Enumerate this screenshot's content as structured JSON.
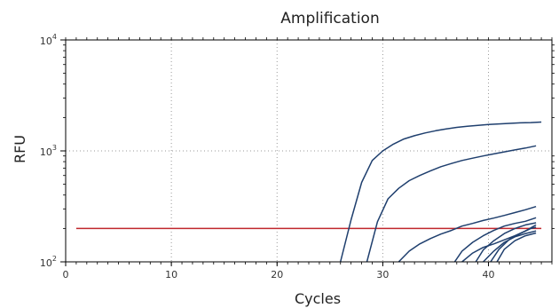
{
  "chart_data": {
    "type": "line",
    "title": "Amplification",
    "xlabel": "Cycles",
    "ylabel": "RFU",
    "xlim": [
      0,
      46
    ],
    "ylim": [
      100,
      10000
    ],
    "yscale": "log",
    "x_ticks": [
      "0",
      "10",
      "20",
      "30",
      "40"
    ],
    "x_tick_values": [
      0,
      10,
      20,
      30,
      40
    ],
    "y_ticks": [
      {
        "value": 100,
        "base": "10",
        "exp": "2"
      },
      {
        "value": 1000,
        "base": "10",
        "exp": "3"
      },
      {
        "value": 10000,
        "base": "10",
        "exp": "4"
      }
    ],
    "grid": true,
    "colors": {
      "series": "#1f3f6e",
      "threshold": "#c0272d",
      "grid": "#999999",
      "axis": "#000000"
    },
    "threshold": 200,
    "series": [
      {
        "x": [
          26,
          27,
          28,
          29,
          30,
          31,
          32,
          33,
          34,
          35,
          36,
          37,
          38,
          39,
          40,
          41,
          42,
          43,
          44,
          45
        ],
        "y": [
          100,
          240,
          520,
          820,
          1000,
          1150,
          1280,
          1370,
          1450,
          1520,
          1580,
          1630,
          1670,
          1700,
          1730,
          1750,
          1770,
          1790,
          1800,
          1820
        ]
      },
      {
        "x": [
          28.5,
          29.5,
          30.5,
          31.5,
          32.5,
          33.5,
          34.5,
          35.5,
          36.5,
          37.5,
          38.5,
          39.5,
          40.5,
          41.5,
          42.5,
          43.5,
          44.5
        ],
        "y": [
          100,
          230,
          370,
          460,
          540,
          600,
          660,
          720,
          770,
          820,
          860,
          900,
          940,
          980,
          1020,
          1060,
          1110
        ]
      },
      {
        "x": [
          31.5,
          32.5,
          33.5,
          34.5,
          35.5,
          36.5,
          37.5,
          38.5,
          39.5,
          40.5,
          41.5,
          42.5,
          43.5,
          44.5
        ],
        "y": [
          100,
          125,
          145,
          162,
          178,
          192,
          210,
          222,
          236,
          248,
          262,
          278,
          295,
          315
        ]
      },
      {
        "x": [
          36.8,
          37.5,
          38.5,
          39.5,
          40.5,
          41.5,
          42.5,
          43.5,
          44.5
        ],
        "y": [
          100,
          125,
          150,
          172,
          192,
          210,
          222,
          232,
          250
        ]
      },
      {
        "x": [
          37.5,
          38.5,
          39.5,
          40.5,
          41.5,
          42.5,
          43.5,
          44.5
        ],
        "y": [
          100,
          120,
          135,
          145,
          158,
          172,
          190,
          215
        ]
      },
      {
        "x": [
          38.8,
          39.5,
          40.5,
          41.5,
          42.5,
          43.5,
          44.5
        ],
        "y": [
          100,
          128,
          155,
          180,
          200,
          215,
          225
        ]
      },
      {
        "x": [
          39.5,
          40.5,
          41.5,
          42.5,
          43.5,
          44.5
        ],
        "y": [
          100,
          125,
          150,
          168,
          180,
          190
        ]
      },
      {
        "x": [
          40.2,
          41,
          42,
          43,
          44,
          44.5
        ],
        "y": [
          100,
          130,
          160,
          180,
          200,
          205
        ]
      },
      {
        "x": [
          40.8,
          41.5,
          42.5,
          43.5,
          44.5
        ],
        "y": [
          100,
          130,
          155,
          172,
          182
        ]
      }
    ]
  }
}
